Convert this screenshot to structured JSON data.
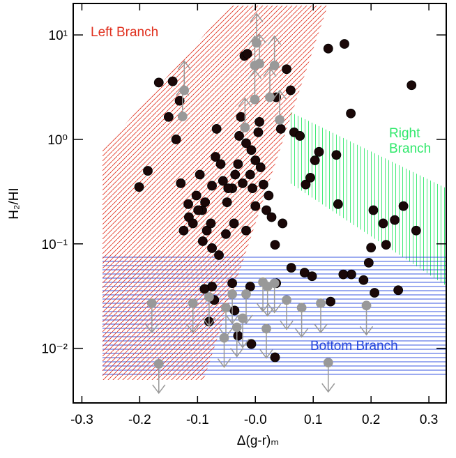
{
  "chart_data": {
    "type": "scatter",
    "x_label": "Δ(g-r)ₘ",
    "y_label": "H₂/HI",
    "xlim": [
      -0.315,
      0.33
    ],
    "ylim": [
      0.003,
      20
    ],
    "log_y": true,
    "xticks": [
      -0.3,
      -0.2,
      -0.1,
      {
        "value": 0,
        "label": "-0.0"
      },
      0.1,
      0.2,
      0.3
    ],
    "yticks": [
      {
        "value": 0.01,
        "label": "10⁻²"
      },
      {
        "value": 0.1,
        "label": "10⁻¹"
      },
      {
        "value": 1,
        "label": "10⁰"
      },
      {
        "value": 10,
        "label": "10¹"
      }
    ],
    "annotations": [
      {
        "lines": [
          "Left Branch"
        ],
        "color": "#e0301e"
      },
      {
        "lines": [
          "Right",
          "Branch"
        ],
        "color": "#2ee86a"
      },
      {
        "lines": [
          "Bottom Branch"
        ],
        "color": "#2244dd"
      }
    ],
    "series": [
      {
        "color": "#1a0808",
        "x": [
          -0.143,
          -0.201,
          -0.186,
          -0.167,
          -0.15,
          -0.131,
          -0.137,
          -0.129,
          -0.116,
          -0.124,
          -0.115,
          -0.102,
          -0.096,
          -0.092,
          -0.084,
          -0.087,
          -0.077,
          -0.075,
          -0.069,
          -0.067,
          -0.056,
          -0.049,
          -0.04,
          -0.037,
          -0.035,
          -0.03,
          -0.028,
          -0.025,
          -0.019,
          -0.014,
          -0.007,
          -0.009,
          -0.005,
          0.0,
          0.005,
          0.009,
          0.014,
          0.019,
          0.023,
          0.028,
          0.034,
          0.036,
          0.044,
          0.047,
          0.054,
          0.061,
          0.067,
          0.077,
          0.087,
          0.095,
          0.103,
          0.11,
          0.126,
          0.154,
          0.165,
          0.143,
          0.14,
          0.204,
          0.221,
          0.256,
          0.278,
          0.27,
          0.226,
          0.2,
          0.187,
          0.206,
          0.247,
          0.196,
          0.166,
          0.152,
          0.13,
          0.098,
          0.085,
          0.062,
          0.036,
          -0.009,
          -0.04,
          -0.075,
          -0.088,
          -0.03,
          -0.036,
          -0.08,
          -0.071,
          0.034,
          -0.007,
          -0.099,
          -0.108,
          -0.091,
          -0.063,
          -0.051,
          -0.016,
          0.0,
          -0.075,
          -0.06,
          -0.016,
          0.007,
          -0.022,
          -0.047,
          0.241
        ],
        "values": [
          3.6,
          0.35,
          0.5,
          3.5,
          1.64,
          2.34,
          1.0,
          0.38,
          0.24,
          0.134,
          0.18,
          0.29,
          0.46,
          0.21,
          0.134,
          0.25,
          0.157,
          0.091,
          0.68,
          1.26,
          0.4,
          0.25,
          0.34,
          0.157,
          0.46,
          0.58,
          1.08,
          1.64,
          6.3,
          6.6,
          0.79,
          0.46,
          0.34,
          0.63,
          1.17,
          0.54,
          0.37,
          0.21,
          0.29,
          0.18,
          0.098,
          2.53,
          1.26,
          0.157,
          4.7,
          2.95,
          1.17,
          1.08,
          0.37,
          0.43,
          0.63,
          0.76,
          7.4,
          8.2,
          1.77,
          0.24,
          0.71,
          0.21,
          0.157,
          0.23,
          0.134,
          3.3,
          0.098,
          0.092,
          0.045,
          0.034,
          0.036,
          0.066,
          0.051,
          0.051,
          0.028,
          0.049,
          0.053,
          0.059,
          0.042,
          0.039,
          0.042,
          0.039,
          0.037,
          0.0132,
          0.023,
          0.018,
          0.029,
          0.0082,
          0.011,
          0.21,
          0.157,
          0.106,
          0.078,
          0.124,
          0.134,
          0.23,
          0.36,
          0.58,
          0.92,
          1.47,
          0.38,
          0.34,
          0.169
        ]
      },
      {
        "color": "#999999",
        "limit": "lower",
        "x": [
          -0.126,
          -0.123,
          -0.001,
          0.002,
          0.033,
          0.007,
          -0.018,
          -0.001,
          0.025,
          0.042
        ],
        "values": [
          1.66,
          2.95,
          5.1,
          8.4,
          5.1,
          5.3,
          1.3,
          2.41,
          2.53,
          1.54
        ]
      },
      {
        "color": "#999999",
        "limit": "upper",
        "x": [
          -0.179,
          -0.167,
          -0.108,
          -0.08,
          -0.051,
          -0.04,
          -0.022,
          -0.016,
          0.013,
          0.021,
          0.033,
          0.054,
          0.08,
          0.113,
          0.192,
          0.126,
          -0.054,
          -0.032,
          0.019
        ],
        "values": [
          0.027,
          0.0071,
          0.027,
          0.031,
          0.0245,
          0.033,
          0.0194,
          0.033,
          0.043,
          0.039,
          0.042,
          0.029,
          0.0245,
          0.027,
          0.0257,
          0.0073,
          0.0126,
          0.0159,
          0.0154
        ]
      }
    ]
  }
}
